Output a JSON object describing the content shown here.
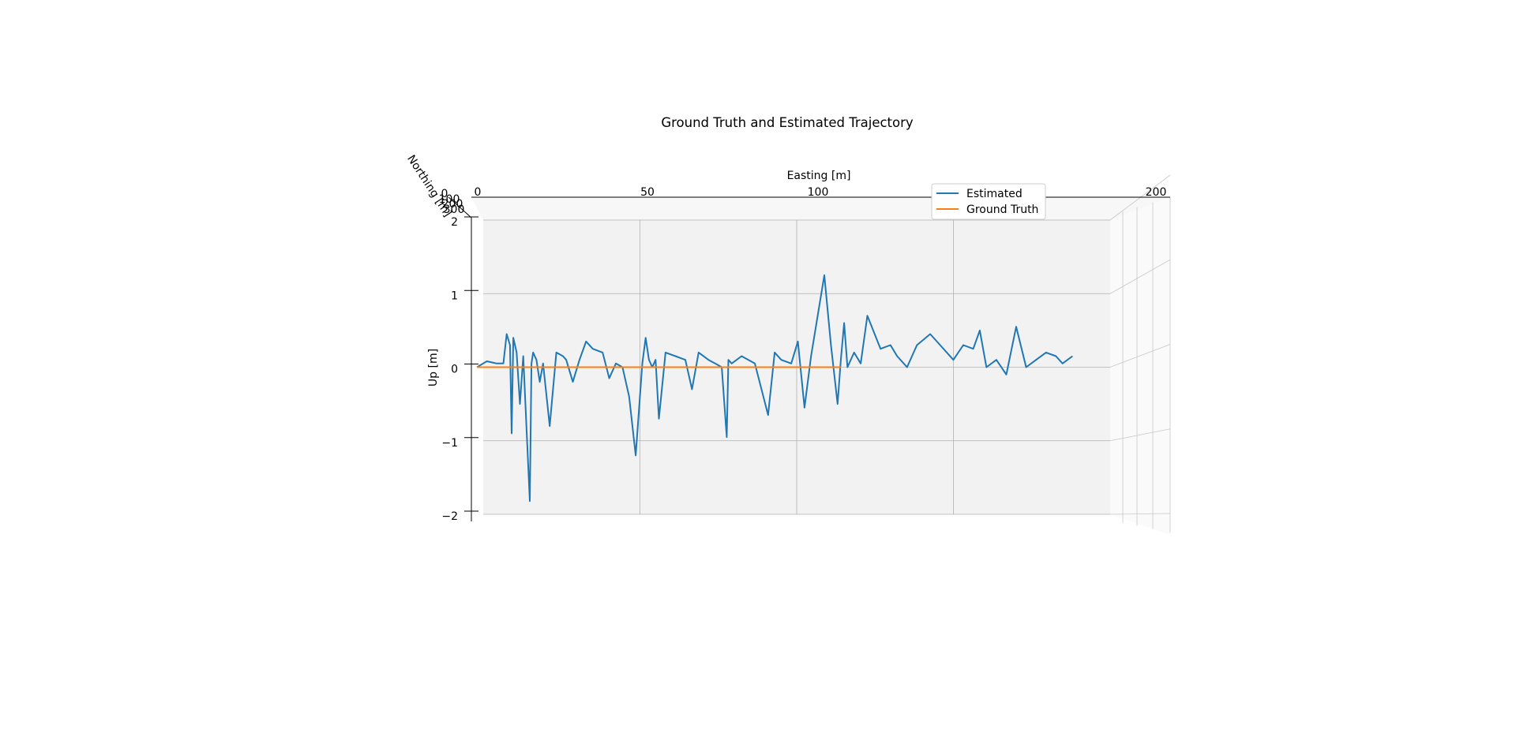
{
  "chart_data": {
    "type": "line",
    "projection": "3d",
    "title": "Ground Truth and Estimated Trajectory",
    "xlabel": "Easting [m]",
    "ylabel": "Northing [m]",
    "zlabel": "Up [m]",
    "xlim": [
      0,
      200
    ],
    "zlim": [
      -2,
      2
    ],
    "x_ticks": [
      "0",
      "50",
      "100",
      "200"
    ],
    "y_ticks": [
      "0",
      "100",
      "200",
      "300"
    ],
    "z_ticks": [
      "2",
      "1",
      "0",
      "−1",
      "−2"
    ],
    "grid": true,
    "legend": {
      "position": "upper-right"
    },
    "series": [
      {
        "name": "Estimated",
        "color": "#1f77b4",
        "x": [
          0,
          3,
          5,
          6,
          8,
          9,
          10,
          10.5,
          11,
          12,
          13,
          14,
          16,
          16.5,
          17,
          18,
          19,
          20,
          22,
          24,
          26,
          27,
          29,
          31,
          33,
          35,
          38,
          40,
          42,
          44,
          46,
          48,
          50,
          51,
          52,
          53,
          54,
          55,
          57,
          60,
          63,
          65,
          67,
          70,
          72,
          74,
          75.5,
          76,
          77,
          80,
          84,
          88,
          90,
          92,
          95,
          97,
          99,
          101,
          103,
          105,
          107,
          109,
          110,
          111,
          112,
          114,
          116,
          118,
          122,
          125,
          127,
          130,
          133,
          137,
          140,
          144,
          147,
          150,
          152,
          154,
          157,
          160,
          163,
          166,
          169,
          172,
          175,
          177,
          180
        ],
        "z": [
          0,
          0.08,
          0.06,
          0.05,
          0.05,
          0.45,
          0.3,
          -0.9,
          0.4,
          0.2,
          -0.5,
          0.15,
          -1.82,
          0.05,
          0.2,
          0.1,
          -0.2,
          0.05,
          -0.8,
          0.2,
          0.15,
          0.1,
          -0.2,
          0.1,
          0.35,
          0.25,
          0.2,
          -0.15,
          0.05,
          0.0,
          -0.4,
          -1.2,
          0.05,
          0.4,
          0.1,
          0.0,
          0.1,
          -0.7,
          0.2,
          0.15,
          0.1,
          -0.3,
          0.2,
          0.1,
          0.05,
          0.0,
          -0.95,
          0.1,
          0.05,
          0.15,
          0.05,
          -0.65,
          0.2,
          0.1,
          0.05,
          0.35,
          -0.55,
          0.15,
          0.7,
          1.25,
          0.3,
          -0.5,
          0.1,
          0.6,
          0.0,
          0.2,
          0.05,
          0.7,
          0.25,
          0.3,
          0.15,
          0.0,
          0.3,
          0.45,
          0.3,
          0.1,
          0.3,
          0.25,
          0.5,
          0.0,
          0.1,
          -0.1,
          0.55,
          0.0,
          0.1,
          0.2,
          0.15,
          0.05,
          0.15
        ]
      },
      {
        "name": "Ground Truth",
        "color": "#ff7f0e",
        "x": [
          0,
          110
        ],
        "z": [
          0,
          0
        ]
      }
    ]
  }
}
